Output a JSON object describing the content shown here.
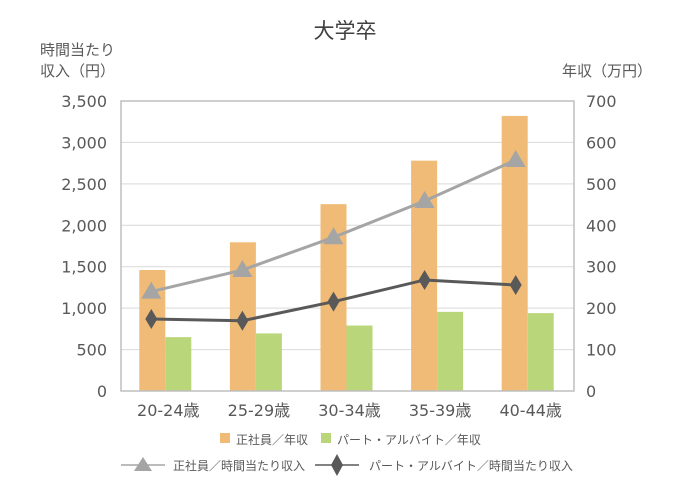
{
  "chart_data": {
    "type": "bar+line",
    "title": "大学卒",
    "ylabel_left": [
      "時間当たり",
      "収入（円）"
    ],
    "ylabel_right": "年収（万円）",
    "categories": [
      "20-24歳",
      "25-29歳",
      "30-34歳",
      "35-39歳",
      "40-44歳"
    ],
    "ylim_left": [
      0,
      3500
    ],
    "ylim_right": [
      0,
      700
    ],
    "yticks_left": [
      "0",
      "500",
      "1,000",
      "1,500",
      "2,000",
      "2,500",
      "3,000",
      "3,500"
    ],
    "yticks_right": [
      "0",
      "100",
      "200",
      "300",
      "400",
      "500",
      "600",
      "700"
    ],
    "grid": true,
    "legend_position": "bottom",
    "bar_series": [
      {
        "name": "正社員／年収",
        "axis": "right",
        "color": "#F0BB76",
        "values": [
          292,
          359,
          451,
          556,
          664
        ]
      },
      {
        "name": "パート・アルバイト／年収",
        "axis": "right",
        "color": "#B9D77A",
        "values": [
          130,
          139,
          158,
          191,
          188
        ]
      }
    ],
    "line_series": [
      {
        "name": "正社員／時間当たり収入",
        "axis": "left",
        "color": "#A5A5A5",
        "marker": "triangle",
        "values": [
          1200,
          1460,
          1855,
          2293,
          2788
        ]
      },
      {
        "name": "パート・アルバイト／時間当たり収入",
        "axis": "left",
        "color": "#595959",
        "marker": "diamond",
        "values": [
          869,
          848,
          1078,
          1340,
          1279
        ]
      }
    ]
  }
}
